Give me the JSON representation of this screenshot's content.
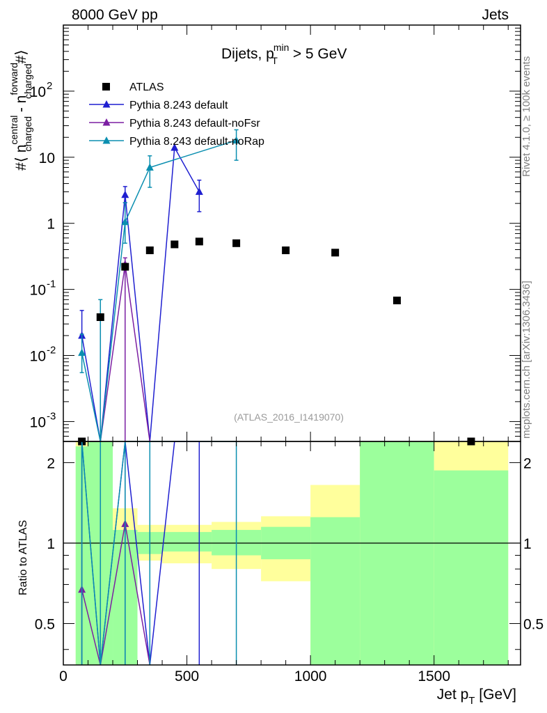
{
  "header": {
    "left": "8000 GeV pp",
    "right": "Jets"
  },
  "side_labels": {
    "top": "Rivet 4.1.0, ≥ 100k events",
    "bottom": "mcplots.cern.ch [arXiv:1306.3436]"
  },
  "colors": {
    "atlas": "#000000",
    "default": "#1f1fd0",
    "noFsr": "#7b1fa2",
    "noRap": "#0b8fb0",
    "band_green": "#9cff9c",
    "band_yellow": "#ffff9c"
  },
  "chart_data": {
    "type": "scatter",
    "title_main": "Dijets, p",
    "title_sub": "T",
    "title_sup": "min",
    "title_rest": " > 5 GeV",
    "ylabel": "#⟨ n^central_charged - n^forward_charged #⟩",
    "ylabel_parts": {
      "pre": "#⟨ n",
      "sup1": "central",
      "sub1": "charged",
      "mid": " - n",
      "sup2": "forward",
      "sub2": "charged",
      "post": "#⟩"
    },
    "xlabel": "Jet p",
    "xlabel_sub": "T",
    "xlabel_unit": " [GeV]",
    "ratio_ylabel": "Ratio to ATLAS",
    "reference": "(ATLAS_2016_I1419070)",
    "xlim": [
      0,
      1850
    ],
    "ylim": [
      0.0005,
      1000
    ],
    "ratio_ylim": [
      0.35,
      2.4
    ],
    "x_ticks": [
      0,
      500,
      1000,
      1500
    ],
    "x_tick_labels": [
      "0",
      "500",
      "1000",
      "1500"
    ],
    "y_ticks": [
      0.001,
      0.01,
      0.1,
      1,
      10,
      100
    ],
    "y_tick_labels": [
      {
        "base": "10",
        "exp": "-3"
      },
      {
        "base": "10",
        "exp": "-2"
      },
      {
        "base": "10",
        "exp": "-1"
      },
      {
        "base": "1",
        "exp": ""
      },
      {
        "base": "10",
        "exp": ""
      },
      {
        "base": "10",
        "exp": "2"
      }
    ],
    "ratio_ticks": [
      0.5,
      1,
      2
    ],
    "ratio_tick_labels": [
      "0.5",
      "1",
      "2"
    ],
    "bins": [
      [
        50,
        100
      ],
      [
        100,
        200
      ],
      [
        200,
        300
      ],
      [
        300,
        400
      ],
      [
        400,
        600
      ],
      [
        600,
        800
      ],
      [
        800,
        1000
      ],
      [
        1000,
        1200
      ],
      [
        1200,
        1500
      ],
      [
        1500,
        1800
      ]
    ],
    "band_green": [
      [
        0.1,
        2.3
      ],
      [
        0.1,
        2.5
      ],
      [
        0.1,
        1.12
      ],
      [
        0.91,
        1.1
      ],
      [
        0.93,
        1.1
      ],
      [
        0.9,
        1.12
      ],
      [
        0.87,
        1.15
      ],
      [
        0.3,
        1.25
      ],
      [
        0.1,
        2.5
      ],
      [
        0.1,
        1.87
      ]
    ],
    "band_yellow": [
      [
        0.1,
        2.5
      ],
      [
        0.1,
        2.5
      ],
      [
        0.73,
        1.35
      ],
      [
        0.86,
        1.17
      ],
      [
        0.84,
        1.17
      ],
      [
        0.8,
        1.2
      ],
      [
        0.72,
        1.26
      ],
      [
        0.3,
        1.65
      ],
      [
        0.1,
        2.5
      ],
      [
        0.1,
        2.5
      ]
    ],
    "legend": [
      "ATLAS",
      "Pythia 8.243 default",
      "Pythia 8.243 default-noFsr",
      "Pythia 8.243 default-noRap"
    ],
    "series": [
      {
        "name": "ATLAS",
        "x": [
          75,
          150,
          250,
          350,
          450,
          550,
          700,
          900,
          1100,
          1350,
          1650
        ],
        "y": [
          0.0005,
          0.038,
          0.22,
          0.39,
          0.48,
          0.53,
          0.5,
          0.39,
          0.36,
          0.068,
          0.0005
        ]
      },
      {
        "name": "Pythia 8.243 default",
        "x": [
          75,
          150,
          250,
          350,
          450,
          550
        ],
        "y": [
          0.02,
          0.0004,
          2.7,
          0.0004,
          14,
          3
        ],
        "err_lo": [
          0.02,
          0,
          2.05,
          0,
          0,
          1.5
        ],
        "err_hi": [
          0.048,
          0,
          3.6,
          0,
          0,
          4.5
        ],
        "ratio": [
          2.4,
          0.1,
          2.4,
          0.1,
          2.4,
          2.4
        ]
      },
      {
        "name": "Pythia 8.243 default-noFsr",
        "x": [
          75,
          150,
          250,
          350
        ],
        "y": [
          0.0004,
          0.0004,
          0.24,
          0.0004
        ],
        "err_lo": [
          0,
          0,
          0,
          0
        ],
        "err_hi": [
          0,
          0.04,
          0.3,
          0
        ],
        "ratio": [
          0.67,
          0.1,
          1.18,
          0.1
        ],
        "ratio_err": [
          [
            0.3,
            1.6
          ],
          [
            0.1,
            0.1
          ],
          [
            0.3,
            2.4
          ],
          [
            0.1,
            0.1
          ]
        ]
      },
      {
        "name": "Pythia 8.243 default-noRap",
        "x": [
          75,
          150,
          250,
          350,
          700
        ],
        "y": [
          0.011,
          0.0004,
          1.05,
          7,
          18
        ],
        "err_lo": [
          0.0055,
          0,
          0.5,
          3.5,
          9
        ],
        "err_hi": [
          0.021,
          0.07,
          2.05,
          10.5,
          26
        ],
        "ratio": [
          2.4,
          0.1,
          2.4,
          2.4,
          2.4
        ]
      }
    ]
  }
}
